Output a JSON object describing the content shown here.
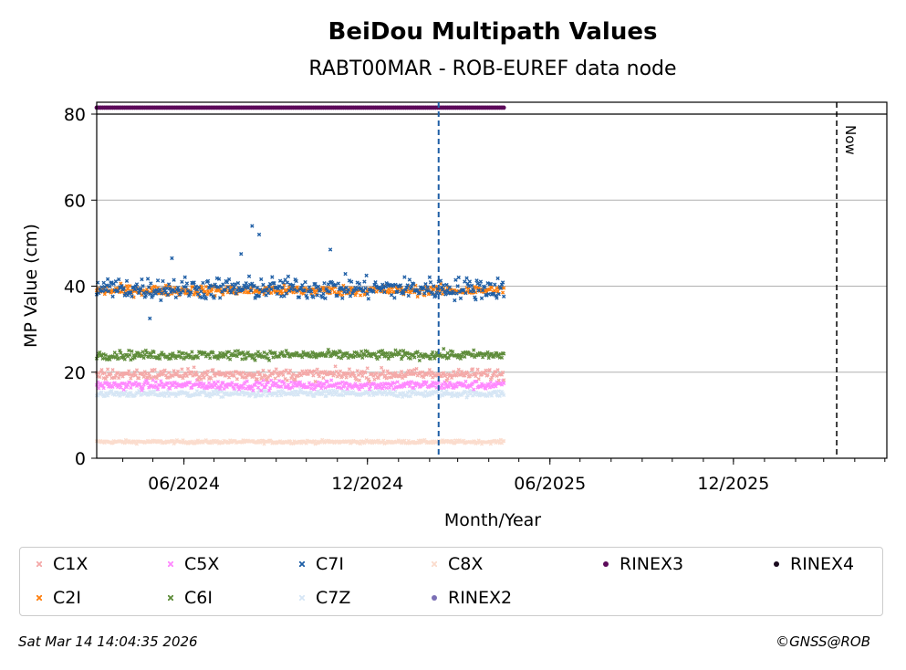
{
  "chart_data": {
    "type": "scatter",
    "title": "BeiDou Multipath Values",
    "subtitle": "RABT00MAR - ROB-EUREF data node",
    "xlabel": "Month/Year",
    "ylabel": "MP Value (cm)",
    "x_range": [
      "2024-03-06",
      "2026-05-03"
    ],
    "ylim": [
      0,
      80
    ],
    "y_ticks": [
      0,
      20,
      40,
      60,
      80
    ],
    "x_ticks": [
      {
        "date": "2024-06-01",
        "label": "06/2024"
      },
      {
        "date": "2024-12-01",
        "label": "12/2024"
      },
      {
        "date": "2025-06-01",
        "label": "06/2025"
      },
      {
        "date": "2025-12-01",
        "label": "12/2025"
      }
    ],
    "grid": "horizontal",
    "data_start": "2024-03-06",
    "data_end": "2025-04-16",
    "vline_date": "2025-02-10",
    "now_date": "2026-03-14",
    "now_label": "Now",
    "series": [
      {
        "name": "C1X",
        "color": "#f4a9a8",
        "marker": "x",
        "mean": 19.5,
        "spread": 1.0
      },
      {
        "name": "C2I",
        "color": "#ff7f0e",
        "marker": "x",
        "mean": 39.0,
        "spread": 0.9
      },
      {
        "name": "C5X",
        "color": "#ff88ff",
        "marker": "x",
        "mean": 17.0,
        "spread": 0.8
      },
      {
        "name": "C6I",
        "color": "#5e8c3a",
        "marker": "x",
        "mean": 24.0,
        "spread": 0.8
      },
      {
        "name": "C7I",
        "color": "#1f5fa6",
        "marker": "x",
        "mean": 39.5,
        "spread": 2.0,
        "outliers": [
          {
            "date": "2024-08-08",
            "value": 54
          },
          {
            "date": "2024-08-15",
            "value": 52
          },
          {
            "date": "2024-07-28",
            "value": 47.5
          },
          {
            "date": "2024-10-25",
            "value": 48.5
          },
          {
            "date": "2024-05-20",
            "value": 46.5
          },
          {
            "date": "2024-04-28",
            "value": 32.5
          }
        ]
      },
      {
        "name": "C7Z",
        "color": "#d6e6f5",
        "marker": "x",
        "mean": 15.0,
        "spread": 0.6
      },
      {
        "name": "C8X",
        "color": "#fbdccd",
        "marker": "x",
        "mean": 3.8,
        "spread": 0.3
      },
      {
        "name": "RINEX2",
        "color": "#7b6fb5",
        "marker": "o"
      },
      {
        "name": "RINEX3",
        "color": "#5c0a5a",
        "marker": "o",
        "strip_value": 81.5
      },
      {
        "name": "RINEX4",
        "color": "#1a0a1e",
        "marker": "o"
      }
    ],
    "legend_placement": "below"
  },
  "footer": {
    "timestamp": "Sat Mar 14 14:04:35 2026",
    "credit": "©GNSS@ROB"
  }
}
